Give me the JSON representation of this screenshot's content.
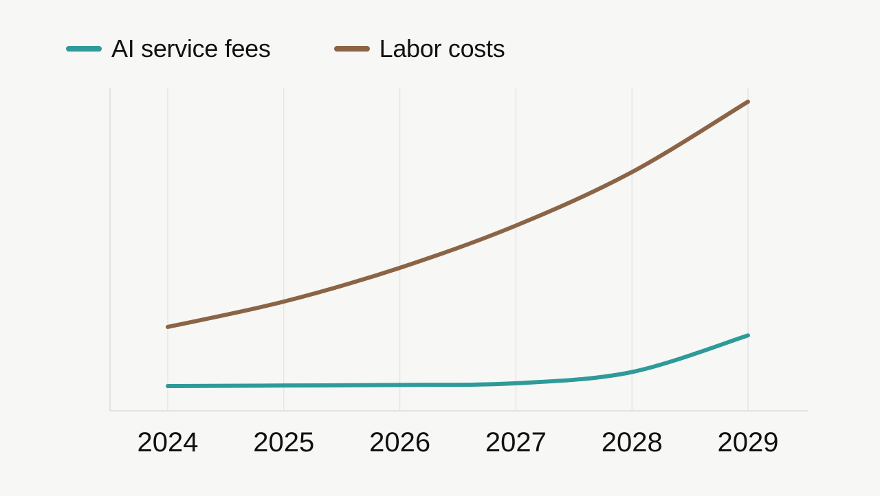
{
  "chart_data": {
    "type": "line",
    "title": "",
    "xlabel": "",
    "ylabel": "",
    "x": [
      "2024",
      "2025",
      "2026",
      "2027",
      "2028",
      "2029"
    ],
    "ylim": [
      0,
      100
    ],
    "grid": "vertical",
    "legend_position": "top-left",
    "series": [
      {
        "name": "AI service fees",
        "color": "#2e9a9a",
        "values": [
          9,
          9.2,
          9.4,
          10,
          14,
          27
        ]
      },
      {
        "name": "Labor costs",
        "color": "#8b6446",
        "values": [
          30,
          39,
          51,
          66,
          85,
          110
        ]
      }
    ]
  }
}
